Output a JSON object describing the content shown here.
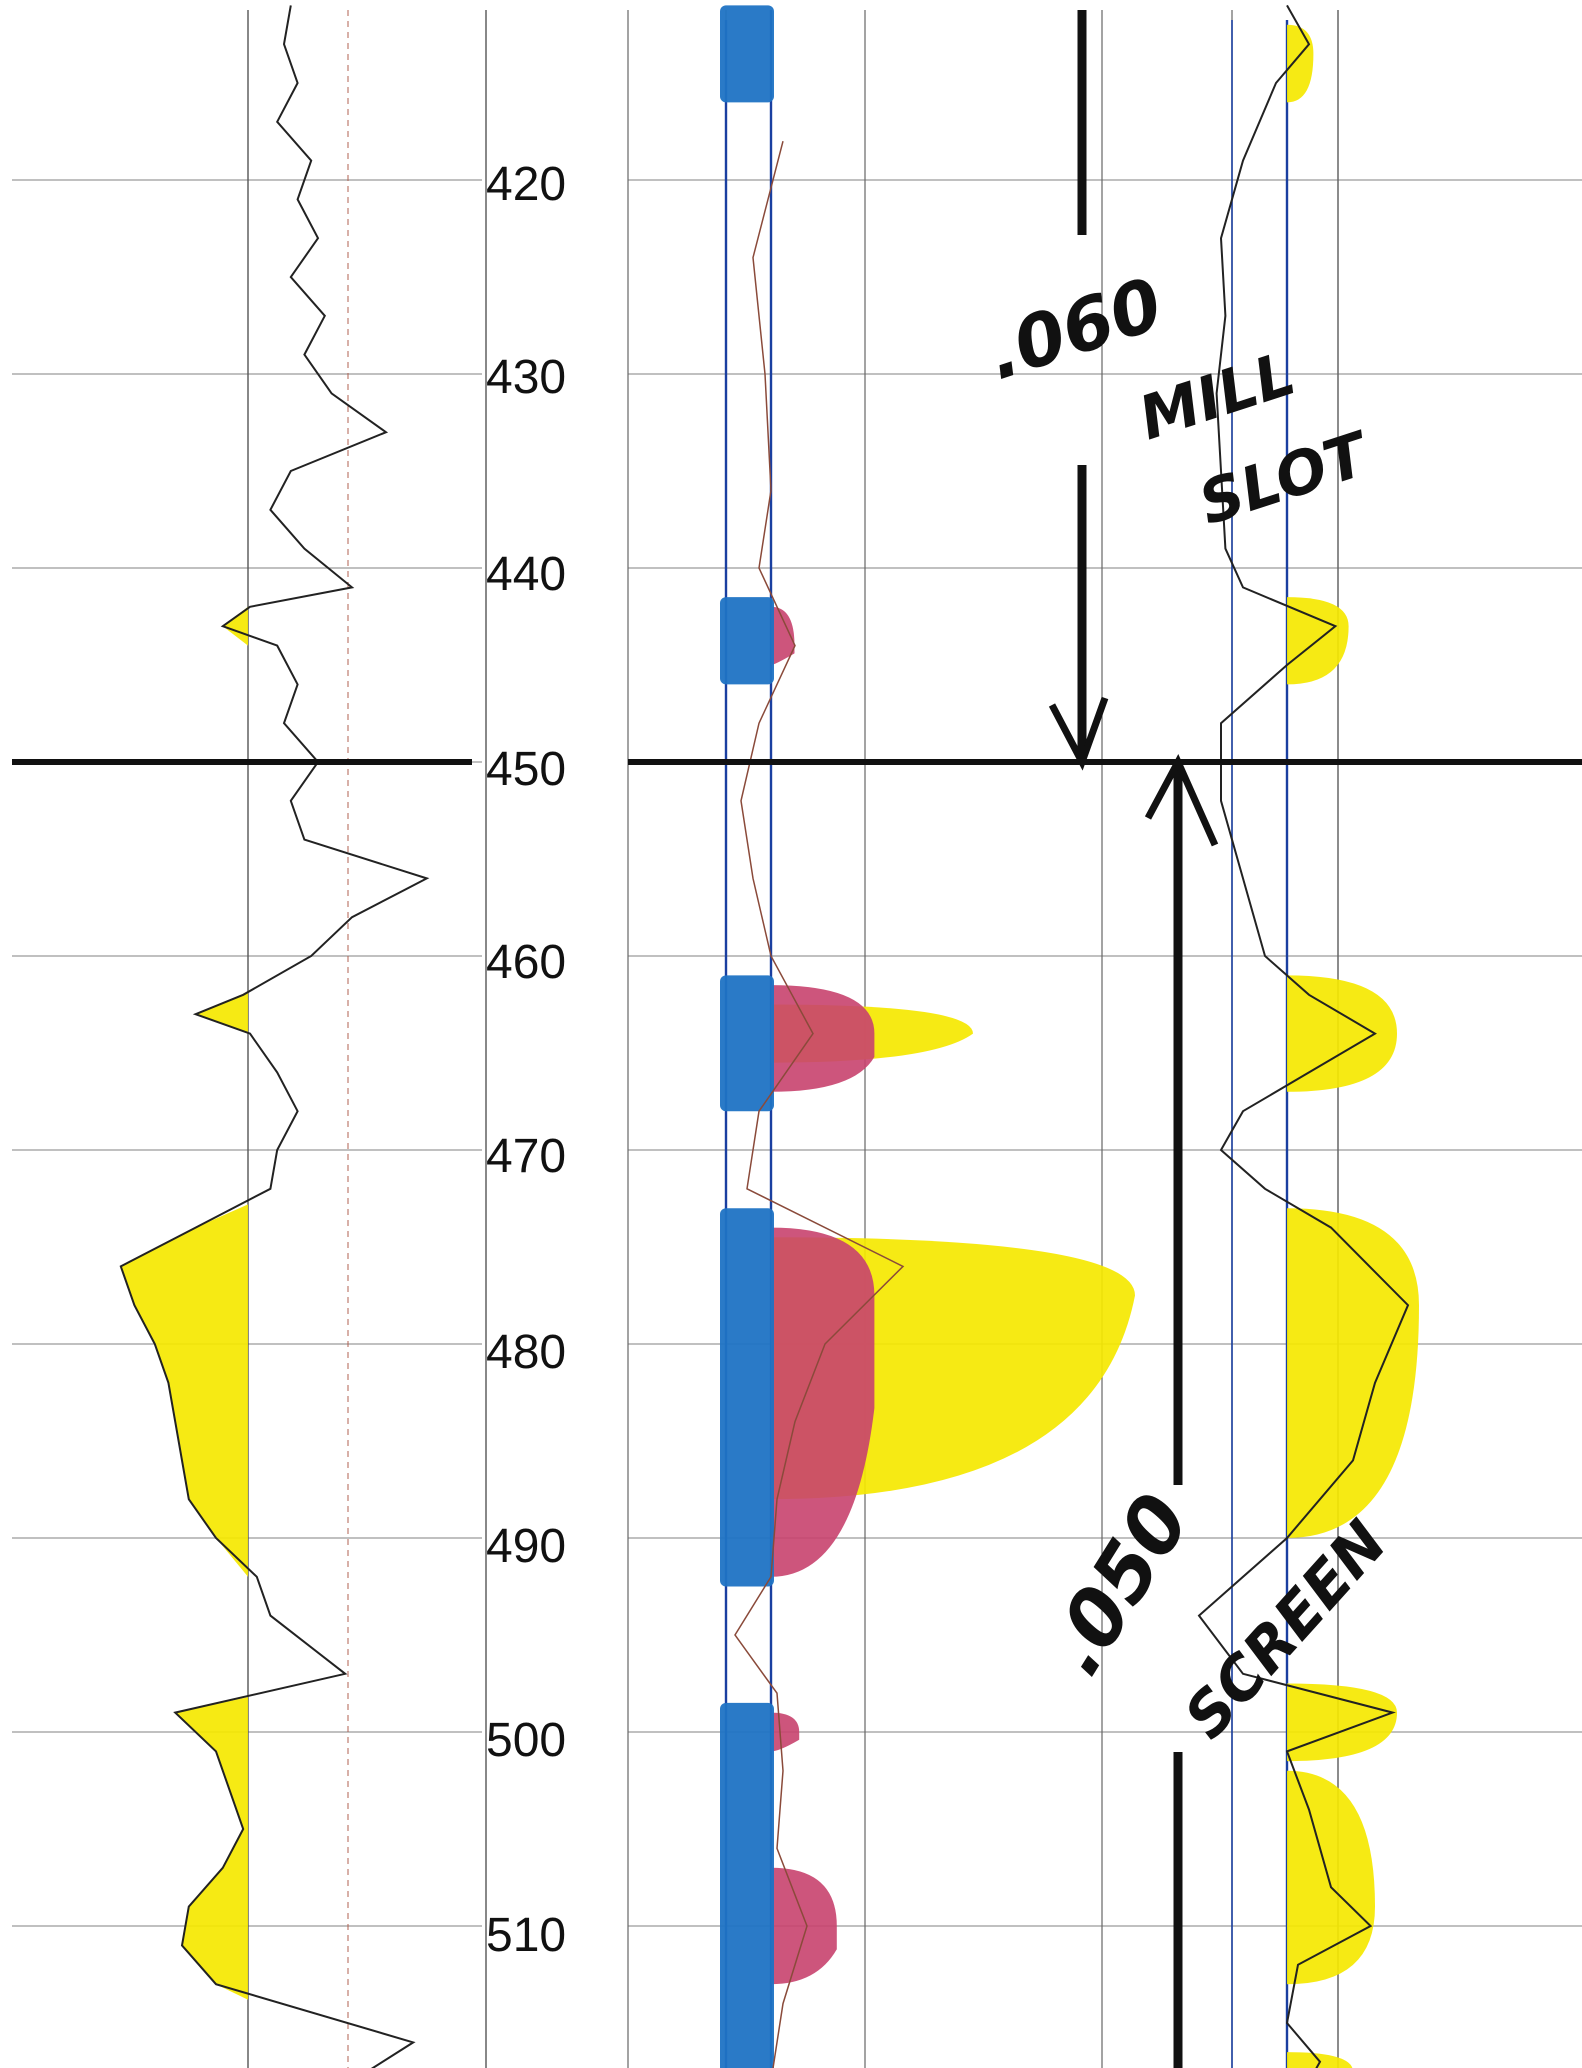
{
  "chart_data": {
    "type": "line",
    "depth_unit": "",
    "depth_ticks": [
      420,
      430,
      440,
      450,
      460,
      470,
      480,
      490,
      500,
      510
    ],
    "depth_range": [
      411,
      518
    ],
    "marker_depth": 450,
    "annotations": {
      "upper_value": ".060",
      "upper_label_1": "MILL",
      "upper_label_2": "SLOT",
      "lower_value": ".050",
      "lower_label": "SCREEN"
    },
    "colors": {
      "sand_fill": "#f5e800",
      "blue_fill": "#1f73c4",
      "magenta_fill": "#c8426e",
      "curve": "#222222",
      "track_line": "#1a3fa0",
      "grid": "#9a9a9a"
    },
    "track1_curve": [
      [
        411,
        0.62
      ],
      [
        413,
        0.6
      ],
      [
        415,
        0.64
      ],
      [
        417,
        0.58
      ],
      [
        419,
        0.68
      ],
      [
        421,
        0.64
      ],
      [
        423,
        0.7
      ],
      [
        425,
        0.62
      ],
      [
        427,
        0.72
      ],
      [
        429,
        0.66
      ],
      [
        431,
        0.74
      ],
      [
        433,
        0.9
      ],
      [
        435,
        0.62
      ],
      [
        437,
        0.56
      ],
      [
        439,
        0.66
      ],
      [
        441,
        0.8
      ],
      [
        442,
        0.5
      ],
      [
        443,
        0.42
      ],
      [
        444,
        0.58
      ],
      [
        446,
        0.64
      ],
      [
        448,
        0.6
      ],
      [
        450,
        0.7
      ],
      [
        452,
        0.62
      ],
      [
        454,
        0.66
      ],
      [
        456,
        1.02
      ],
      [
        458,
        0.8
      ],
      [
        460,
        0.68
      ],
      [
        462,
        0.48
      ],
      [
        463,
        0.34
      ],
      [
        464,
        0.5
      ],
      [
        466,
        0.58
      ],
      [
        468,
        0.64
      ],
      [
        470,
        0.58
      ],
      [
        472,
        0.56
      ],
      [
        474,
        0.34
      ],
      [
        476,
        0.12
      ],
      [
        478,
        0.16
      ],
      [
        480,
        0.22
      ],
      [
        482,
        0.26
      ],
      [
        484,
        0.28
      ],
      [
        486,
        0.3
      ],
      [
        488,
        0.32
      ],
      [
        490,
        0.4
      ],
      [
        492,
        0.52
      ],
      [
        494,
        0.56
      ],
      [
        497,
        0.78
      ],
      [
        499,
        0.28
      ],
      [
        501,
        0.4
      ],
      [
        503,
        0.44
      ],
      [
        505,
        0.48
      ],
      [
        507,
        0.42
      ],
      [
        509,
        0.32
      ],
      [
        511,
        0.3
      ],
      [
        513,
        0.4
      ],
      [
        516,
        0.98
      ],
      [
        518,
        0.8
      ]
    ],
    "track1_fills": [
      {
        "top": 441.5,
        "bottom": 444.0
      },
      {
        "top": 461.8,
        "bottom": 465.8
      },
      {
        "top": 472.8,
        "bottom": 493.0
      },
      {
        "top": 498.2,
        "bottom": 513.8
      }
    ],
    "track2_blue": [
      {
        "top": 411.0,
        "bottom": 416.0
      },
      {
        "top": 441.5,
        "bottom": 446.0
      },
      {
        "top": 461.0,
        "bottom": 468.0
      },
      {
        "top": 473.0,
        "bottom": 492.5
      },
      {
        "top": 498.5,
        "bottom": 518.0
      }
    ],
    "track2_magenta": [
      {
        "top": 442.0,
        "bottom": 445.0,
        "peak": 444.0,
        "ext": 0.25
      },
      {
        "top": 461.5,
        "bottom": 467.0,
        "peak": 464.0,
        "ext": 1.1
      },
      {
        "top": 474.0,
        "bottom": 492.0,
        "peak": 477.5,
        "ext": 1.1
      },
      {
        "top": 499.0,
        "bottom": 501.0,
        "peak": 500.0,
        "ext": 0.3
      },
      {
        "top": 507.0,
        "bottom": 513.0,
        "peak": 510.0,
        "ext": 0.7
      }
    ],
    "track2_yellow": [
      {
        "top": 462.5,
        "bottom": 465.5,
        "peak": 464.0,
        "ext": 1.2
      },
      {
        "top": 474.5,
        "bottom": 488.0,
        "peak": 477.5,
        "ext": 3.0
      }
    ],
    "track2_curve": [
      [
        418,
        0.2
      ],
      [
        424,
        -0.3
      ],
      [
        430,
        -0.1
      ],
      [
        436,
        0.0
      ],
      [
        440,
        -0.2
      ],
      [
        444,
        0.4
      ],
      [
        448,
        -0.2
      ],
      [
        452,
        -0.5
      ],
      [
        456,
        -0.3
      ],
      [
        460,
        0.0
      ],
      [
        464,
        0.7
      ],
      [
        468,
        -0.2
      ],
      [
        472,
        -0.4
      ],
      [
        476,
        2.2
      ],
      [
        480,
        0.9
      ],
      [
        484,
        0.4
      ],
      [
        488,
        0.1
      ],
      [
        492,
        0.0
      ],
      [
        495,
        -0.6
      ],
      [
        498,
        0.1
      ],
      [
        502,
        0.2
      ],
      [
        506,
        0.1
      ],
      [
        510,
        0.6
      ],
      [
        514,
        0.2
      ],
      [
        518,
        0.0
      ]
    ],
    "track3_fills": [
      {
        "top": 412.0,
        "bottom": 416.0,
        "peak": 413.5,
        "ext": 0.12
      },
      {
        "top": 441.5,
        "bottom": 446.0,
        "peak": 443.0,
        "ext": 0.28
      },
      {
        "top": 461.0,
        "bottom": 467.0,
        "peak": 464.0,
        "ext": 0.5
      },
      {
        "top": 473.0,
        "bottom": 490.0,
        "peak": 478.0,
        "ext": 0.6
      },
      {
        "top": 497.5,
        "bottom": 501.5,
        "peak": 499.0,
        "ext": 0.5
      },
      {
        "top": 502.0,
        "bottom": 513.0,
        "peak": 509.0,
        "ext": 0.4
      },
      {
        "top": 516.5,
        "bottom": 518.0,
        "peak": 517.5,
        "ext": 0.3
      }
    ],
    "track3_curve": [
      [
        411,
        0.0
      ],
      [
        413,
        0.1
      ],
      [
        415,
        -0.05
      ],
      [
        419,
        -0.2
      ],
      [
        423,
        -0.3
      ],
      [
        427,
        -0.28
      ],
      [
        431,
        -0.32
      ],
      [
        435,
        -0.3
      ],
      [
        439,
        -0.28
      ],
      [
        441,
        -0.2
      ],
      [
        443,
        0.22
      ],
      [
        445,
        0.0
      ],
      [
        448,
        -0.3
      ],
      [
        452,
        -0.3
      ],
      [
        456,
        -0.2
      ],
      [
        460,
        -0.1
      ],
      [
        462,
        0.1
      ],
      [
        464,
        0.4
      ],
      [
        466,
        0.1
      ],
      [
        468,
        -0.2
      ],
      [
        470,
        -0.3
      ],
      [
        472,
        -0.1
      ],
      [
        474,
        0.2
      ],
      [
        478,
        0.55
      ],
      [
        482,
        0.4
      ],
      [
        486,
        0.3
      ],
      [
        490,
        0.0
      ],
      [
        494,
        -0.4
      ],
      [
        497,
        -0.2
      ],
      [
        499,
        0.48
      ],
      [
        501,
        0.0
      ],
      [
        504,
        0.1
      ],
      [
        508,
        0.2
      ],
      [
        510,
        0.38
      ],
      [
        512,
        0.05
      ],
      [
        515,
        0.0
      ],
      [
        517,
        0.15
      ],
      [
        518,
        0.1
      ]
    ]
  }
}
